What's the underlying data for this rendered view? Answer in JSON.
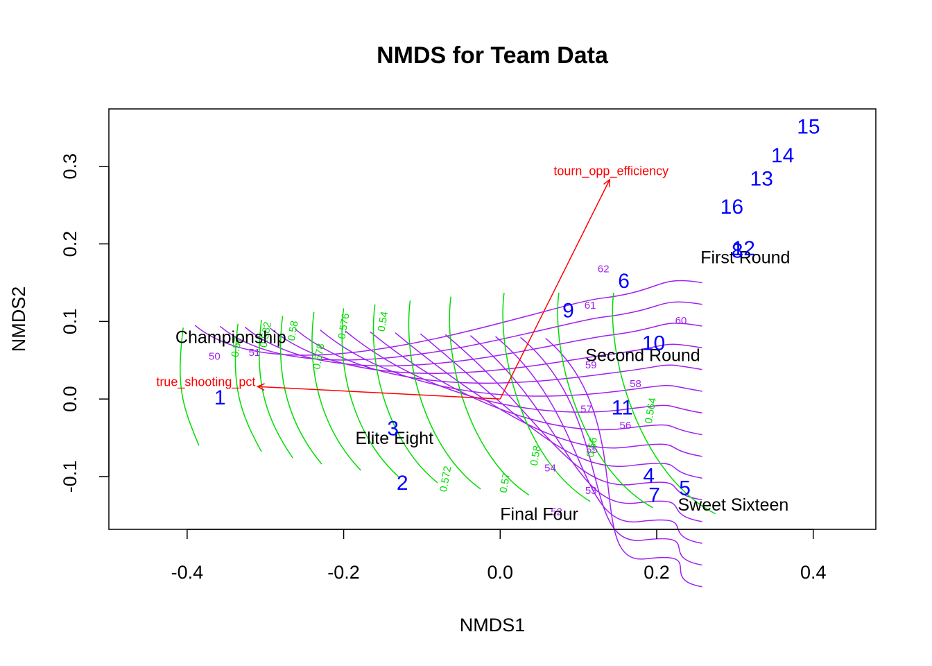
{
  "chart_data": {
    "type": "scatter",
    "title": "NMDS for Team Data",
    "xlabel": "NMDS1",
    "ylabel": "NMDS2",
    "xlim": [
      -0.5,
      0.48
    ],
    "ylim": [
      -0.168,
      0.374
    ],
    "x_ticks": [
      -0.4,
      -0.2,
      0.0,
      0.2,
      0.4
    ],
    "x_tick_labels": [
      "-0.4",
      "-0.2",
      "0.0",
      "0.2",
      "0.4"
    ],
    "y_ticks": [
      -0.1,
      0.0,
      0.1,
      0.2,
      0.3
    ],
    "y_tick_labels": [
      "-0.1",
      "0.0",
      "0.1",
      "0.2",
      "0.3"
    ],
    "colors": {
      "sites": "#0000ff",
      "species": "#000000",
      "vectors": "#ff0000",
      "contour_a": "#a020f0",
      "contour_b": "#00dd00"
    },
    "sites": [
      {
        "label": "1",
        "x": -0.358,
        "y": 0.003
      },
      {
        "label": "2",
        "x": -0.125,
        "y": -0.107
      },
      {
        "label": "3",
        "x": -0.137,
        "y": -0.037
      },
      {
        "label": "4",
        "x": 0.19,
        "y": -0.098
      },
      {
        "label": "5",
        "x": 0.236,
        "y": -0.114
      },
      {
        "label": "6",
        "x": 0.158,
        "y": 0.153
      },
      {
        "label": "7",
        "x": 0.197,
        "y": -0.123
      },
      {
        "label": "8",
        "x": 0.303,
        "y": 0.192
      },
      {
        "label": "9",
        "x": 0.087,
        "y": 0.115
      },
      {
        "label": "10",
        "x": 0.196,
        "y": 0.073
      },
      {
        "label": "11",
        "x": 0.156,
        "y": -0.01
      },
      {
        "label": "12",
        "x": 0.311,
        "y": 0.195
      },
      {
        "label": "13",
        "x": 0.334,
        "y": 0.285
      },
      {
        "label": "14",
        "x": 0.361,
        "y": 0.315
      },
      {
        "label": "15",
        "x": 0.394,
        "y": 0.352
      },
      {
        "label": "16",
        "x": 0.296,
        "y": 0.249
      }
    ],
    "species": [
      {
        "label": "Championship",
        "x": -0.415,
        "y": 0.08
      },
      {
        "label": "Elite Eight",
        "x": -0.185,
        "y": -0.05
      },
      {
        "label": "Final Four",
        "x": 0.0,
        "y": -0.148
      },
      {
        "label": "Second Round",
        "x": 0.109,
        "y": 0.057
      },
      {
        "label": "First Round",
        "x": 0.256,
        "y": 0.183
      },
      {
        "label": "Sweet Sixteen",
        "x": 0.227,
        "y": -0.136
      }
    ],
    "vectors": [
      {
        "label": "tourn_opp_efficiency",
        "x": 0.14,
        "y": 0.283
      },
      {
        "label": "true_shooting_pct",
        "x": -0.31,
        "y": 0.016
      }
    ],
    "contour_purple_labels": [
      {
        "text": "62",
        "x": 0.132,
        "y": 0.168
      },
      {
        "text": "61",
        "x": 0.115,
        "y": 0.121
      },
      {
        "text": "60",
        "x": 0.231,
        "y": 0.101
      },
      {
        "text": "59",
        "x": 0.116,
        "y": 0.044
      },
      {
        "text": "58",
        "x": 0.173,
        "y": 0.02
      },
      {
        "text": "57",
        "x": 0.11,
        "y": -0.013
      },
      {
        "text": "56",
        "x": 0.16,
        "y": -0.034
      },
      {
        "text": "55",
        "x": 0.117,
        "y": -0.065
      },
      {
        "text": "54",
        "x": 0.064,
        "y": -0.089
      },
      {
        "text": "53",
        "x": 0.116,
        "y": -0.118
      },
      {
        "text": "52",
        "x": 0.072,
        "y": -0.145
      },
      {
        "text": "51",
        "x": -0.314,
        "y": 0.06
      },
      {
        "text": "50",
        "x": -0.365,
        "y": 0.055
      }
    ],
    "contour_green_labels": [
      {
        "text": "0.57",
        "x": -0.337,
        "y": 0.067
      },
      {
        "text": "0.582",
        "x": -0.3,
        "y": 0.083
      },
      {
        "text": "0.58",
        "x": -0.265,
        "y": 0.088
      },
      {
        "text": "0.578",
        "x": -0.232,
        "y": 0.055
      },
      {
        "text": "0.576",
        "x": -0.2,
        "y": 0.094
      },
      {
        "text": "0.54",
        "x": -0.15,
        "y": 0.1
      },
      {
        "text": "0.572",
        "x": -0.07,
        "y": -0.103
      },
      {
        "text": "0.57",
        "x": 0.006,
        "y": -0.108
      },
      {
        "text": "0.58",
        "x": 0.045,
        "y": -0.073
      },
      {
        "text": "0.56",
        "x": 0.117,
        "y": -0.062
      },
      {
        "text": "0.564",
        "x": 0.192,
        "y": -0.015
      }
    ]
  }
}
